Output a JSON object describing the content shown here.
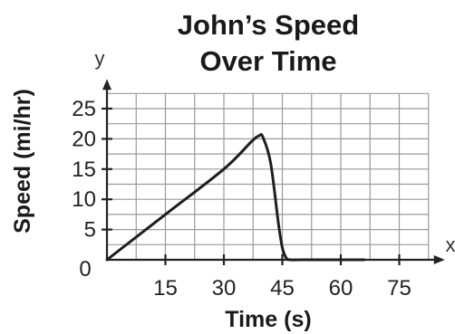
{
  "chart_data": {
    "type": "line",
    "title_lines": [
      "John’s Speed",
      "Over Time"
    ],
    "xlabel": "Time (s)",
    "ylabel": "Speed (mi/hr)",
    "x_axis_letter": "x",
    "y_axis_letter": "y",
    "origin_label": "0",
    "xlim": [
      0,
      82.5
    ],
    "ylim": [
      0,
      27.5
    ],
    "x_ticks": [
      15,
      30,
      45,
      60,
      75
    ],
    "y_ticks": [
      5,
      10,
      15,
      20,
      25
    ],
    "grid": true,
    "series": [
      {
        "x": [
          0,
          15,
          30,
          37,
          39,
          40,
          42,
          44,
          45,
          46,
          47,
          50,
          66
        ],
        "y": [
          0,
          7.5,
          15,
          19.5,
          20.5,
          20.3,
          16,
          6,
          2,
          0.3,
          0,
          0,
          0
        ]
      }
    ]
  }
}
